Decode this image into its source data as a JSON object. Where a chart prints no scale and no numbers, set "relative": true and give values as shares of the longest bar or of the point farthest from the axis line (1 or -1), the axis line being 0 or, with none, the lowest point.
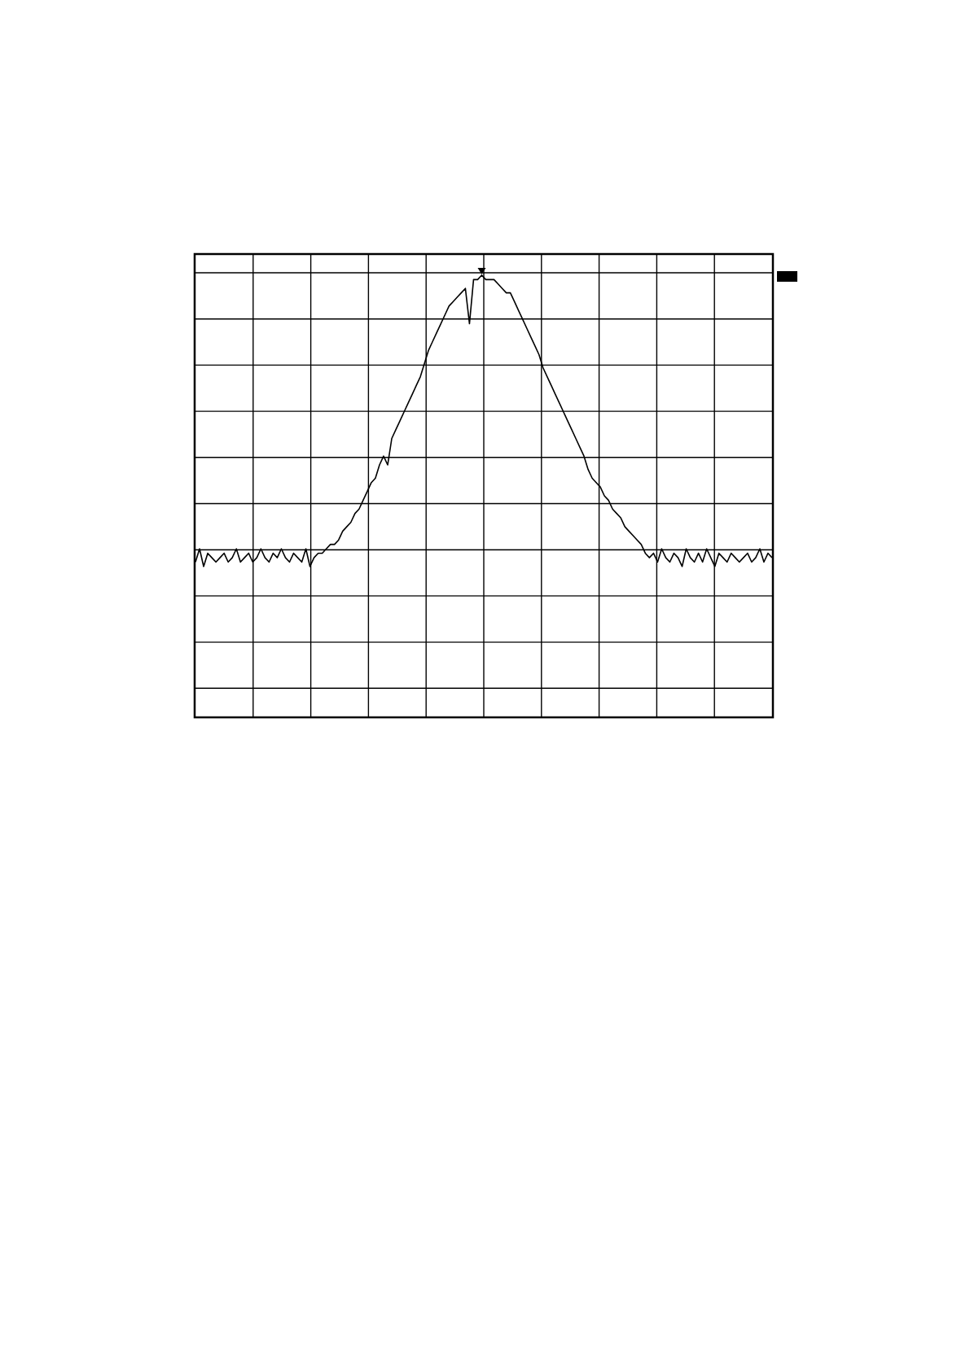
{
  "chart_data": {
    "type": "line",
    "relative": true,
    "grid": true,
    "categories": [
      null,
      null,
      null,
      null,
      null,
      null,
      null,
      null,
      null,
      null,
      null,
      null,
      null,
      null,
      null,
      null,
      null,
      null,
      null,
      null,
      null,
      null,
      null,
      null,
      null,
      null,
      null,
      null,
      null,
      null,
      null,
      null,
      null,
      null,
      null,
      null,
      null,
      null,
      null,
      null,
      null,
      null,
      null,
      null,
      null,
      null,
      null,
      null,
      null,
      null,
      null,
      null,
      null,
      null,
      null,
      null,
      null,
      null,
      null,
      null,
      null,
      null,
      null,
      null,
      null,
      null,
      null,
      null,
      null,
      null,
      null,
      null,
      null,
      null,
      null,
      null,
      null,
      null,
      null,
      null,
      null,
      null,
      null,
      null,
      null,
      null,
      null,
      null,
      null,
      null,
      null,
      null,
      null,
      null,
      null,
      null,
      null,
      null,
      null,
      null,
      null,
      null,
      null,
      null,
      null,
      null,
      null,
      null,
      null,
      null,
      null,
      null,
      null,
      null,
      null,
      null,
      null,
      null,
      null,
      null,
      null,
      null,
      null,
      null,
      null,
      null,
      null,
      null,
      null,
      null,
      null,
      null,
      null,
      null,
      null,
      null,
      null,
      null,
      null,
      null,
      null,
      null
    ],
    "series": [
      {
        "color": "#000000",
        "values": [
          0.35,
          0.38,
          0.34,
          0.37,
          0.36,
          0.35,
          0.36,
          0.37,
          0.35,
          0.36,
          0.38,
          0.35,
          0.36,
          0.37,
          0.35,
          0.36,
          0.38,
          0.36,
          0.35,
          0.37,
          0.36,
          0.38,
          0.36,
          0.35,
          0.37,
          0.36,
          0.35,
          0.38,
          0.34,
          0.36,
          0.37,
          0.37,
          0.38,
          0.39,
          0.39,
          0.4,
          0.42,
          0.43,
          0.44,
          0.46,
          0.47,
          0.49,
          0.51,
          0.53,
          0.54,
          0.57,
          0.59,
          0.57,
          0.63,
          0.65,
          0.67,
          0.69,
          0.71,
          0.73,
          0.75,
          0.77,
          0.8,
          0.83,
          0.85,
          0.87,
          0.89,
          0.91,
          0.93,
          0.94,
          0.95,
          0.96,
          0.97,
          0.89,
          0.99,
          0.99,
          1,
          0.99,
          0.99,
          0.99,
          0.98,
          0.97,
          0.96,
          0.96,
          0.94,
          0.92,
          0.9,
          0.88,
          0.86,
          0.84,
          0.82,
          0.79,
          0.77,
          0.75,
          0.73,
          0.71,
          0.69,
          0.67,
          0.65,
          0.63,
          0.61,
          0.59,
          0.56,
          0.54,
          0.53,
          0.52,
          0.5,
          0.49,
          0.47,
          0.46,
          0.45,
          0.43,
          0.42,
          0.41,
          0.4,
          0.39,
          0.37,
          0.36,
          0.37,
          0.35,
          0.38,
          0.36,
          0.35,
          0.37,
          0.36,
          0.34,
          0.38,
          0.36,
          0.35,
          0.37,
          0.35,
          0.38,
          0.36,
          0.34,
          0.37,
          0.36,
          0.35,
          0.37,
          0.36,
          0.35,
          0.36,
          0.37,
          0.35,
          0.36,
          0.38,
          0.35,
          0.37,
          0.36
        ]
      }
    ]
  }
}
